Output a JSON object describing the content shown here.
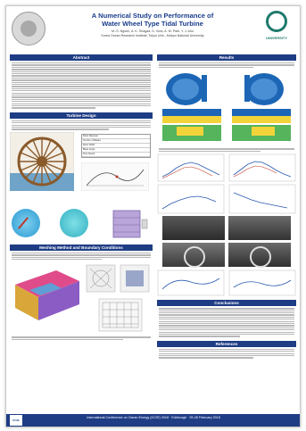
{
  "header": {
    "title_line1": "A Numerical Study on Performance of",
    "title_line2": "Water Wheel Type Tidal Turbine",
    "authors_line1": "M.-S. Ngoun, A. K. Shagaa, D. Vicio, A. M. Park, Y. J. Ahu",
    "authors_line2": "Korea Ocean Research Institute, Tokyo Univ., Mokpo National University",
    "logo_right_text": "UNIVERSITY"
  },
  "sections": {
    "abstract": "Abstract",
    "turbine_design": "Turbine Design",
    "meshing": "Meshing Method and Boundary Conditions",
    "results": "Results",
    "conclusions": "Conclusions",
    "references": "References"
  },
  "params_table": [
    "Rotor Diameter",
    "Number of Blades",
    "Rotor Width",
    "Blade Angle",
    "Flow Speed"
  ],
  "footer": {
    "line1": "International Conference on Ocean Energy (ICOE) 2018 · Edinburgh · 25-28 February 2018",
    "line2": "",
    "logo": "ICOE"
  },
  "colors": {
    "section_header": "#1f3d85",
    "title": "#1a3d8c",
    "cfd_blue": "#1c66b5",
    "cfd_yellow": "#f2d43a",
    "cfd_green": "#55b45c"
  }
}
